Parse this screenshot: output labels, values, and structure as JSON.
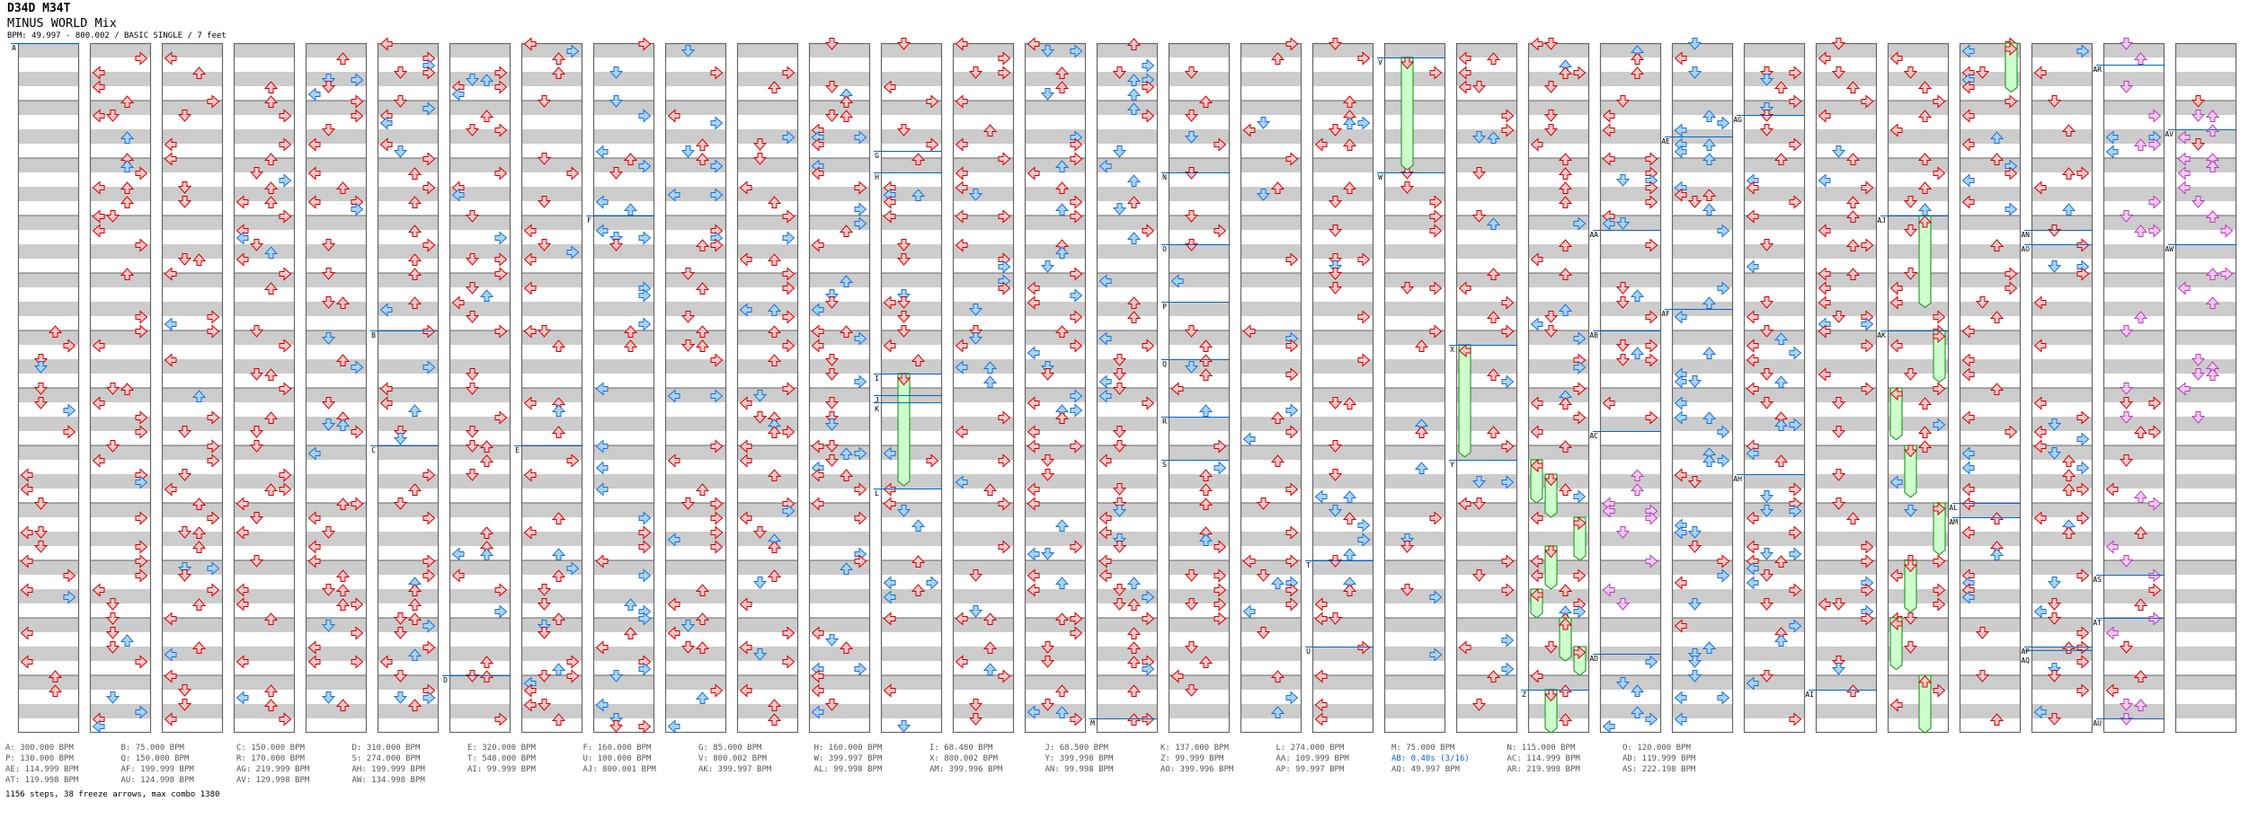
{
  "header": {
    "artist": "D34D M34T",
    "title": "MINUS WORLD Mix",
    "info": "BPM: 49.997 - 800.002 / BASIC SINGLE / 7 feet"
  },
  "chart": {
    "columns": 31,
    "measures_per_column": 12,
    "lanes": [
      "left",
      "down",
      "up",
      "right"
    ],
    "colors": {
      "quarter_fill": "#ffc8c8",
      "quarter_stroke": "#cc0000",
      "eighth_fill": "#a8d4ff",
      "eighth_stroke": "#1a6fd0",
      "sixteenth_fill": "#ffc8ff",
      "sixteenth_stroke": "#b040b0",
      "freeze_fill": "#ccffcc",
      "freeze_stroke": "#339933",
      "bpm_line": "#0066cc",
      "band": "#cccccc",
      "border": "#666666"
    },
    "markers": [
      {
        "label": "A",
        "col": 0,
        "measure": 0
      },
      {
        "label": "B",
        "col": 5,
        "measure": 5.0
      },
      {
        "label": "C",
        "col": 5,
        "measure": 7.0
      },
      {
        "label": "D",
        "col": 6,
        "measure": 11.0
      },
      {
        "label": "E",
        "col": 7,
        "measure": 7.0
      },
      {
        "label": "F",
        "col": 8,
        "measure": 3.0
      },
      {
        "label": "G",
        "col": 12,
        "measure": 1.875
      },
      {
        "label": "H",
        "col": 12,
        "measure": 2.25
      },
      {
        "label": "I",
        "col": 12,
        "measure": 5.75
      },
      {
        "label": "J",
        "col": 12,
        "measure": 6.125
      },
      {
        "label": "K",
        "col": 12,
        "measure": 6.25
      },
      {
        "label": "L",
        "col": 12,
        "measure": 7.75
      },
      {
        "label": "M",
        "col": 15,
        "measure": 11.75
      },
      {
        "label": "N",
        "col": 16,
        "measure": 2.25
      },
      {
        "label": "O",
        "col": 16,
        "measure": 3.5
      },
      {
        "label": "P",
        "col": 16,
        "measure": 4.5
      },
      {
        "label": "Q",
        "col": 16,
        "measure": 5.5
      },
      {
        "label": "R",
        "col": 16,
        "measure": 6.5
      },
      {
        "label": "S",
        "col": 16,
        "measure": 7.25
      },
      {
        "label": "T",
        "col": 18,
        "measure": 9.0
      },
      {
        "label": "U",
        "col": 18,
        "measure": 10.5
      },
      {
        "label": "V",
        "col": 19,
        "measure": 0.25
      },
      {
        "label": "W",
        "col": 19,
        "measure": 2.25
      },
      {
        "label": "X",
        "col": 20,
        "measure": 5.25
      },
      {
        "label": "Y",
        "col": 20,
        "measure": 7.25
      },
      {
        "label": "Z",
        "col": 21,
        "measure": 11.25
      },
      {
        "label": "AA",
        "col": 22,
        "measure": 3.25
      },
      {
        "label": "AB",
        "col": 22,
        "measure": 5.0
      },
      {
        "label": "AC",
        "col": 22,
        "measure": 6.75
      },
      {
        "label": "AD",
        "col": 22,
        "measure": 10.625
      },
      {
        "label": "AE",
        "col": 23,
        "measure": 1.625
      },
      {
        "label": "AF",
        "col": 23,
        "measure": 4.625
      },
      {
        "label": "AG",
        "col": 24,
        "measure": 1.25
      },
      {
        "label": "AH",
        "col": 24,
        "measure": 7.5
      },
      {
        "label": "AI",
        "col": 25,
        "measure": 11.25
      },
      {
        "label": "AJ",
        "col": 26,
        "measure": 3.0
      },
      {
        "label": "AK",
        "col": 26,
        "measure": 5.0
      },
      {
        "label": "AL",
        "col": 27,
        "measure": 8.0
      },
      {
        "label": "AM",
        "col": 27,
        "measure": 8.25
      },
      {
        "label": "AN",
        "col": 28,
        "measure": 3.25
      },
      {
        "label": "AO",
        "col": 28,
        "measure": 3.5
      },
      {
        "label": "AP",
        "col": 28,
        "measure": 10.5
      },
      {
        "label": "AQ",
        "col": 28,
        "measure": 10.56
      },
      {
        "label": "AR",
        "col": 29,
        "measure": 0.375
      },
      {
        "label": "AS",
        "col": 29,
        "measure": 9.25
      },
      {
        "label": "AT",
        "col": 29,
        "measure": 10.0
      },
      {
        "label": "AU",
        "col": 29,
        "measure": 11.75
      },
      {
        "label": "AV",
        "col": 30,
        "measure": 1.5
      },
      {
        "label": "AW",
        "col": 30,
        "measure": 3.5
      }
    ],
    "freezes": [
      {
        "col": 12,
        "lane": 1,
        "start": 5.75,
        "end": 7.7
      },
      {
        "col": 19,
        "lane": 1,
        "start": 0.25,
        "end": 2.2
      },
      {
        "col": 20,
        "lane": 0,
        "start": 5.25,
        "end": 7.2
      },
      {
        "col": 21,
        "lane": 0,
        "start": 7.25,
        "end": 8.0
      },
      {
        "col": 21,
        "lane": 1,
        "start": 7.5,
        "end": 8.25
      },
      {
        "col": 21,
        "lane": 3,
        "start": 8.25,
        "end": 9.0
      },
      {
        "col": 21,
        "lane": 1,
        "start": 8.75,
        "end": 9.5
      },
      {
        "col": 21,
        "lane": 0,
        "start": 9.5,
        "end": 10.0
      },
      {
        "col": 21,
        "lane": 2,
        "start": 10.0,
        "end": 10.75
      },
      {
        "col": 21,
        "lane": 3,
        "start": 10.5,
        "end": 11.0
      },
      {
        "col": 21,
        "lane": 1,
        "start": 11.25,
        "end": 12.0
      },
      {
        "col": 26,
        "lane": 2,
        "start": 3.0,
        "end": 4.6
      },
      {
        "col": 26,
        "lane": 3,
        "start": 5.0,
        "end": 5.9
      },
      {
        "col": 26,
        "lane": 0,
        "start": 6.0,
        "end": 6.9
      },
      {
        "col": 26,
        "lane": 1,
        "start": 7.0,
        "end": 7.9
      },
      {
        "col": 26,
        "lane": 3,
        "start": 8.0,
        "end": 8.9
      },
      {
        "col": 26,
        "lane": 1,
        "start": 9.0,
        "end": 9.9
      },
      {
        "col": 26,
        "lane": 0,
        "start": 10.0,
        "end": 10.9
      },
      {
        "col": 26,
        "lane": 2,
        "start": 11.0,
        "end": 12.0
      },
      {
        "col": 27,
        "lane": 3,
        "start": 0.0,
        "end": 0.85
      }
    ]
  },
  "legend": [
    [
      "A: 300.000 BPM",
      "P: 130.000 BPM",
      "AE: 114.999 BPM",
      "AT: 119.998 BPM"
    ],
    [
      "B: 75.000 BPM",
      "Q: 150.000 BPM",
      "AF: 199.999 BPM",
      "AU: 124.998 BPM"
    ],
    [
      "C: 150.000 BPM",
      "R: 170.000 BPM",
      "AG: 219.999 BPM",
      "AV: 129.998 BPM"
    ],
    [
      "D: 310.000 BPM",
      "S: 274.000 BPM",
      "AH: 199.999 BPM",
      "AW: 134.998 BPM"
    ],
    [
      "E: 320.000 BPM",
      "T: 548.000 BPM",
      "AI: 99.999 BPM"
    ],
    [
      "F: 160.000 BPM",
      "U: 100.000 BPM",
      "AJ: 800.001 BPM"
    ],
    [
      "G: 85.000 BPM",
      "V: 800.002 BPM",
      "AK: 399.997 BPM"
    ],
    [
      "H: 160.000 BPM",
      "W: 399.997 BPM",
      "AL: 99.998 BPM"
    ],
    [
      "I: 68.480 BPM",
      "X: 800.002 BPM",
      "AM: 399.996 BPM"
    ],
    [
      "J: 68.500 BPM",
      "Y: 399.998 BPM",
      "AN: 99.998 BPM"
    ],
    [
      "K: 137.000 BPM",
      "Z: 99.999 BPM",
      "AO: 399.996 BPM"
    ],
    [
      "L: 274.000 BPM",
      "AA: 109.999 BPM",
      "AP: 99.997 BPM"
    ],
    [
      "M: 75.000 BPM",
      "AB: 0.40s (3/16)",
      "AQ: 49.997 BPM"
    ],
    [
      "N: 115.000 BPM",
      "AC: 114.999 BPM",
      "AR: 219.998 BPM"
    ],
    [
      "O: 120.000 BPM",
      "AD: 119.999 BPM",
      "AS: 222.198 BPM"
    ]
  ],
  "summary": "1156 steps, 38 freeze arrows, max combo 1380"
}
